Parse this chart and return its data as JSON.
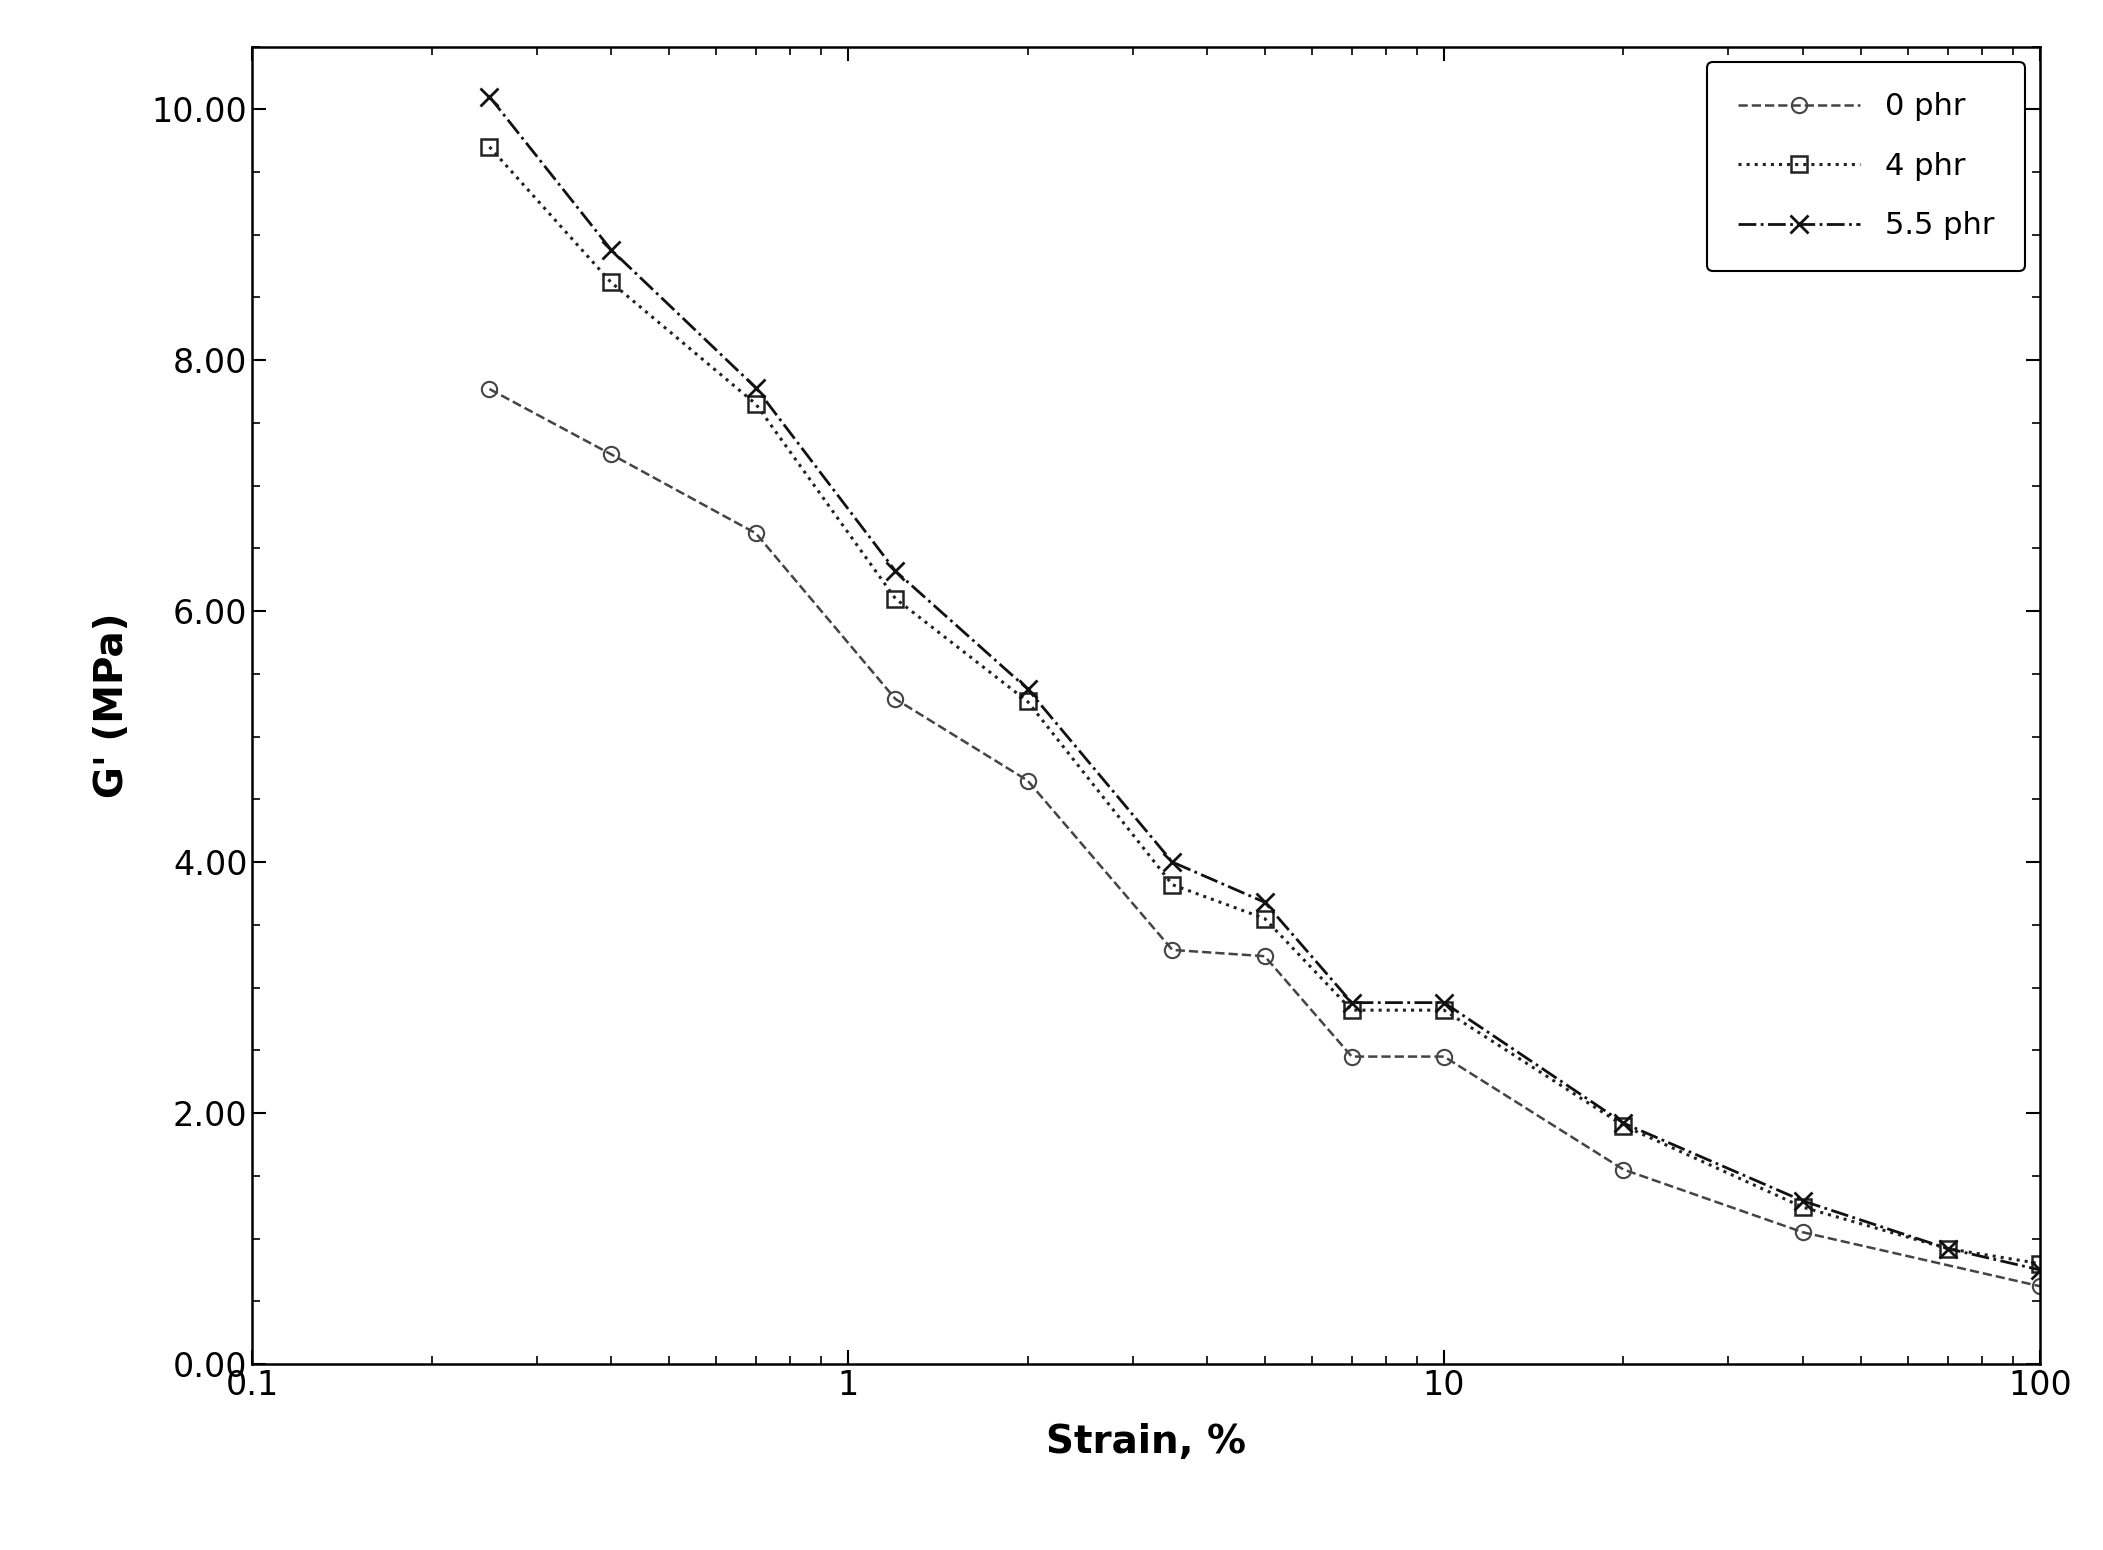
{
  "series": [
    {
      "label": "0 phr",
      "x": [
        0.25,
        0.4,
        0.7,
        1.2,
        2.0,
        3.5,
        5.0,
        7.0,
        10.0,
        20.0,
        40.0,
        100.0
      ],
      "y": [
        7.77,
        7.25,
        6.62,
        5.3,
        4.65,
        3.3,
        3.25,
        2.45,
        2.45,
        1.55,
        1.05,
        0.62
      ],
      "linestyle": "--",
      "marker": "o",
      "markersize": 11,
      "linewidth": 1.8,
      "color": "#444444",
      "markerfacecolor": "none",
      "markeredgewidth": 1.5
    },
    {
      "label": "4 phr",
      "x": [
        0.25,
        0.4,
        0.7,
        1.2,
        2.0,
        3.5,
        5.0,
        7.0,
        10.0,
        20.0,
        40.0,
        70.0,
        100.0
      ],
      "y": [
        9.7,
        8.62,
        7.65,
        6.1,
        5.28,
        3.82,
        3.55,
        2.82,
        2.82,
        1.9,
        1.25,
        0.92,
        0.8
      ],
      "linestyle": ":",
      "marker": "s",
      "markersize": 11,
      "linewidth": 2.2,
      "color": "#222222",
      "markerfacecolor": "none",
      "markeredgewidth": 1.8
    },
    {
      "label": "5.5 phr",
      "x": [
        0.25,
        0.4,
        0.7,
        1.2,
        2.0,
        3.5,
        5.0,
        7.0,
        10.0,
        20.0,
        40.0,
        70.0,
        100.0
      ],
      "y": [
        10.1,
        8.88,
        7.78,
        6.32,
        5.38,
        4.0,
        3.68,
        2.88,
        2.88,
        1.92,
        1.3,
        0.92,
        0.75
      ],
      "linestyle": "-.",
      "marker": "x",
      "markersize": 13,
      "linewidth": 2.0,
      "color": "#111111",
      "markerfacecolor": "#111111",
      "markeredgewidth": 2.0
    }
  ],
  "xlabel": "Strain, %",
  "ylabel": "G' (MPa)",
  "xlim": [
    0.1,
    100
  ],
  "ylim": [
    0.0,
    10.5
  ],
  "yticks": [
    0.0,
    2.0,
    4.0,
    6.0,
    8.0,
    10.0
  ],
  "ytick_labels": [
    "0.00",
    "2.00",
    "4.00",
    "6.00",
    "8.00",
    "10.00"
  ],
  "xtick_labels": [
    "0.1",
    "1",
    "10",
    "100"
  ],
  "legend_loc": "upper right",
  "background_color": "#ffffff",
  "axes_color": "#000000",
  "tick_fontsize": 24,
  "label_fontsize": 28,
  "legend_fontsize": 22
}
